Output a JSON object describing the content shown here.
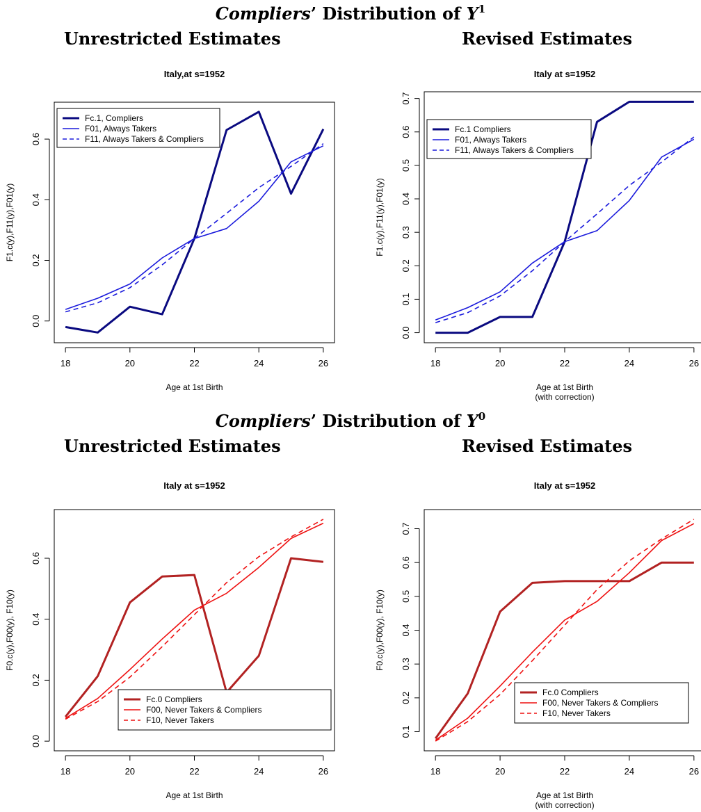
{
  "headings": {
    "top": {
      "italic": "Compliers",
      "rest": "’ Distribution of ",
      "var": "Y",
      "sup": "1"
    },
    "bottom": {
      "italic": "Compliers",
      "rest": "’ Distribution of ",
      "var": "Y",
      "sup": "0"
    },
    "unrestricted": "Unrestricted Estimates",
    "revised": "Revised Estimates"
  },
  "colors": {
    "navy": "#0a0a80",
    "blue": "#1a1adc",
    "darkred": "#b22222",
    "red": "#ee1111"
  },
  "chart_data": [
    {
      "type": "line",
      "title": "Italy,at s=1952",
      "xlabel": "Age at 1st Birth",
      "xlabel2": "",
      "ylabel": "F1.c(y),F11(y),F01(y)",
      "x": [
        18,
        19,
        20,
        21,
        22,
        23,
        24,
        25,
        26
      ],
      "xlim": [
        18,
        26
      ],
      "ylim": [
        -0.04,
        0.69
      ],
      "xticks": [
        "18",
        "20",
        "22",
        "24",
        "26"
      ],
      "yticks": [
        "0.0",
        "0.2",
        "0.4",
        "0.6"
      ],
      "legend": "top-left",
      "series": [
        {
          "name": "Fc.1, Compliers",
          "color": "#0a0a80",
          "style": "thick",
          "values": [
            -0.02,
            -0.038,
            0.047,
            0.022,
            0.272,
            0.63,
            0.69,
            0.42,
            0.633
          ]
        },
        {
          "name": "F01, Always Takers",
          "color": "#1a1adc",
          "style": "solid",
          "values": [
            0.038,
            0.075,
            0.122,
            0.208,
            0.272,
            0.305,
            0.395,
            0.525,
            0.578
          ]
        },
        {
          "name": "F11, Always Takers & Compliers",
          "color": "#1a1adc",
          "style": "dashed",
          "values": [
            0.03,
            0.06,
            0.11,
            0.185,
            0.272,
            0.355,
            0.44,
            0.51,
            0.585
          ]
        }
      ]
    },
    {
      "type": "line",
      "title": "Italy at s=1952",
      "xlabel": "Age at 1st Birth",
      "xlabel2": "(with correction)",
      "ylabel": "F1.c(y),F11(y),F01(y)",
      "x": [
        18,
        19,
        20,
        21,
        22,
        23,
        24,
        25,
        26
      ],
      "xlim": [
        18,
        26
      ],
      "ylim": [
        0,
        0.69
      ],
      "xticks": [
        "18",
        "20",
        "22",
        "24",
        "26"
      ],
      "yticks": [
        "0.0",
        "0.1",
        "0.2",
        "0.3",
        "0.4",
        "0.5",
        "0.6",
        "0.7"
      ],
      "legend": "top-left",
      "series": [
        {
          "name": "Fc.1 Compliers",
          "color": "#0a0a80",
          "style": "thick",
          "values": [
            0.0,
            0.0,
            0.047,
            0.047,
            0.272,
            0.63,
            0.69,
            0.69,
            0.69
          ]
        },
        {
          "name": "F01, Always Takers",
          "color": "#1a1adc",
          "style": "solid",
          "values": [
            0.038,
            0.075,
            0.122,
            0.208,
            0.272,
            0.305,
            0.395,
            0.525,
            0.578
          ]
        },
        {
          "name": "F11, Always Takers & Compliers",
          "color": "#1a1adc",
          "style": "dashed",
          "values": [
            0.03,
            0.06,
            0.11,
            0.185,
            0.272,
            0.355,
            0.44,
            0.51,
            0.585
          ]
        }
      ]
    },
    {
      "type": "line",
      "title": "Italy at s=1952",
      "xlabel": "Age at 1st Birth",
      "xlabel2": "",
      "ylabel": "F0.c(y),F00(y), F10(y)",
      "x": [
        18,
        19,
        20,
        21,
        22,
        23,
        24,
        25,
        26
      ],
      "xlim": [
        18,
        26
      ],
      "ylim": [
        0.0,
        0.728
      ],
      "xticks": [
        "18",
        "20",
        "22",
        "24",
        "26"
      ],
      "yticks": [
        "0.0",
        "0.2",
        "0.4",
        "0.6"
      ],
      "legend": "bottom-right",
      "series": [
        {
          "name": "Fc.0 Compliers",
          "color": "#b22222",
          "style": "thick",
          "values": [
            0.08,
            0.213,
            0.455,
            0.54,
            0.545,
            0.16,
            0.28,
            0.6,
            0.588
          ]
        },
        {
          "name": "F00, Never Takers & Compliers",
          "color": "#ee1111",
          "style": "solid",
          "values": [
            0.075,
            0.14,
            0.235,
            0.335,
            0.43,
            0.485,
            0.57,
            0.665,
            0.715
          ]
        },
        {
          "name": "F10, Never Takers",
          "color": "#ee1111",
          "style": "dashed",
          "values": [
            0.072,
            0.13,
            0.21,
            0.31,
            0.415,
            0.52,
            0.605,
            0.67,
            0.728
          ]
        }
      ]
    },
    {
      "type": "line",
      "title": "Italy at s=1952",
      "xlabel": "Age at 1st Birth",
      "xlabel2": "(with correction)",
      "ylabel": "F0.c(y),F00(y), F10(y)",
      "x": [
        18,
        19,
        20,
        21,
        22,
        23,
        24,
        25,
        26
      ],
      "xlim": [
        18,
        26
      ],
      "ylim": [
        0.072,
        0.728
      ],
      "xticks": [
        "18",
        "20",
        "22",
        "24",
        "26"
      ],
      "yticks": [
        "0.1",
        "0.2",
        "0.3",
        "0.4",
        "0.5",
        "0.6",
        "0.7"
      ],
      "legend": "bottom-right",
      "series": [
        {
          "name": "Fc.0 Compliers",
          "color": "#b22222",
          "style": "thick",
          "values": [
            0.08,
            0.213,
            0.455,
            0.54,
            0.545,
            0.545,
            0.545,
            0.6,
            0.6
          ]
        },
        {
          "name": "F00, Never Takers & Compliers",
          "color": "#ee1111",
          "style": "solid",
          "values": [
            0.075,
            0.14,
            0.235,
            0.335,
            0.43,
            0.485,
            0.57,
            0.665,
            0.715
          ]
        },
        {
          "name": "F10, Never Takers",
          "color": "#ee1111",
          "style": "dashed",
          "values": [
            0.072,
            0.13,
            0.21,
            0.31,
            0.415,
            0.52,
            0.605,
            0.67,
            0.728
          ]
        }
      ]
    }
  ]
}
